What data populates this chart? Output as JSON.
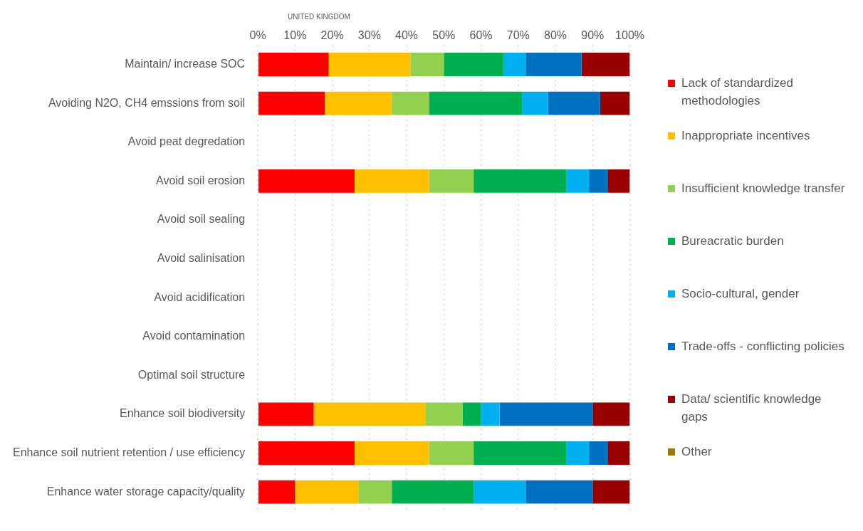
{
  "chart_data": {
    "type": "bar",
    "orientation": "horizontal",
    "stacked": true,
    "title": "UNITED KINGDOM",
    "categories": [
      "Maintain/ increase SOC",
      "Avoiding N2O, CH4 emssions from soil",
      "Avoid peat degredation",
      "Avoid soil erosion",
      "Avoid soil sealing",
      "Avoid salinisation",
      "Avoid acidification",
      "Avoid contamination",
      "Optimal soil structure",
      "Enhance soil biodiversity",
      "Enhance soil nutrient retention / use efficiency",
      "Enhance water storage capacity/quality"
    ],
    "series": [
      {
        "name": "Lack of standardized methodologies",
        "color": "#ff0000",
        "values": [
          19,
          18,
          null,
          26,
          null,
          null,
          null,
          null,
          null,
          15,
          26,
          10
        ]
      },
      {
        "name": "Inappropriate incentives",
        "color": "#ffc000",
        "values": [
          22,
          18,
          null,
          20,
          null,
          null,
          null,
          null,
          null,
          30,
          20,
          17
        ]
      },
      {
        "name": "Insufficient knowledge transfer",
        "color": "#92d050",
        "values": [
          9,
          10,
          null,
          12,
          null,
          null,
          null,
          null,
          null,
          10,
          12,
          9
        ]
      },
      {
        "name": "Bureacratic burden",
        "color": "#00b050",
        "values": [
          16,
          25,
          null,
          25,
          null,
          null,
          null,
          null,
          null,
          5,
          25,
          22
        ]
      },
      {
        "name": "Socio-cultural, gender",
        "color": "#00b0f0",
        "values": [
          6,
          7,
          null,
          6,
          null,
          null,
          null,
          null,
          null,
          5,
          6,
          14
        ]
      },
      {
        "name": "Trade-offs - conflicting policies",
        "color": "#0070c0",
        "values": [
          15,
          14,
          null,
          5,
          null,
          null,
          null,
          null,
          null,
          25,
          5,
          18
        ]
      },
      {
        "name": "Data/ scientific knowledge gaps",
        "color": "#990000",
        "values": [
          13,
          8,
          null,
          6,
          null,
          null,
          null,
          null,
          null,
          10,
          6,
          10
        ]
      },
      {
        "name": "Other",
        "color": "#9c7c00",
        "values": [
          0,
          0,
          null,
          0,
          null,
          null,
          null,
          null,
          null,
          0,
          0,
          0
        ]
      }
    ],
    "xlim": [
      0,
      100
    ],
    "xticks": [
      {
        "value": 0,
        "label": "0%"
      },
      {
        "value": 10,
        "label": "10%"
      },
      {
        "value": 20,
        "label": "20%"
      },
      {
        "value": 30,
        "label": "30%"
      },
      {
        "value": 40,
        "label": "40%"
      },
      {
        "value": 50,
        "label": "50%"
      },
      {
        "value": 60,
        "label": "60%"
      },
      {
        "value": 70,
        "label": "70%"
      },
      {
        "value": 80,
        "label": "80%"
      },
      {
        "value": 90,
        "label": "90%"
      },
      {
        "value": 100,
        "label": "100%"
      }
    ],
    "grid": "x",
    "legend": "right"
  }
}
